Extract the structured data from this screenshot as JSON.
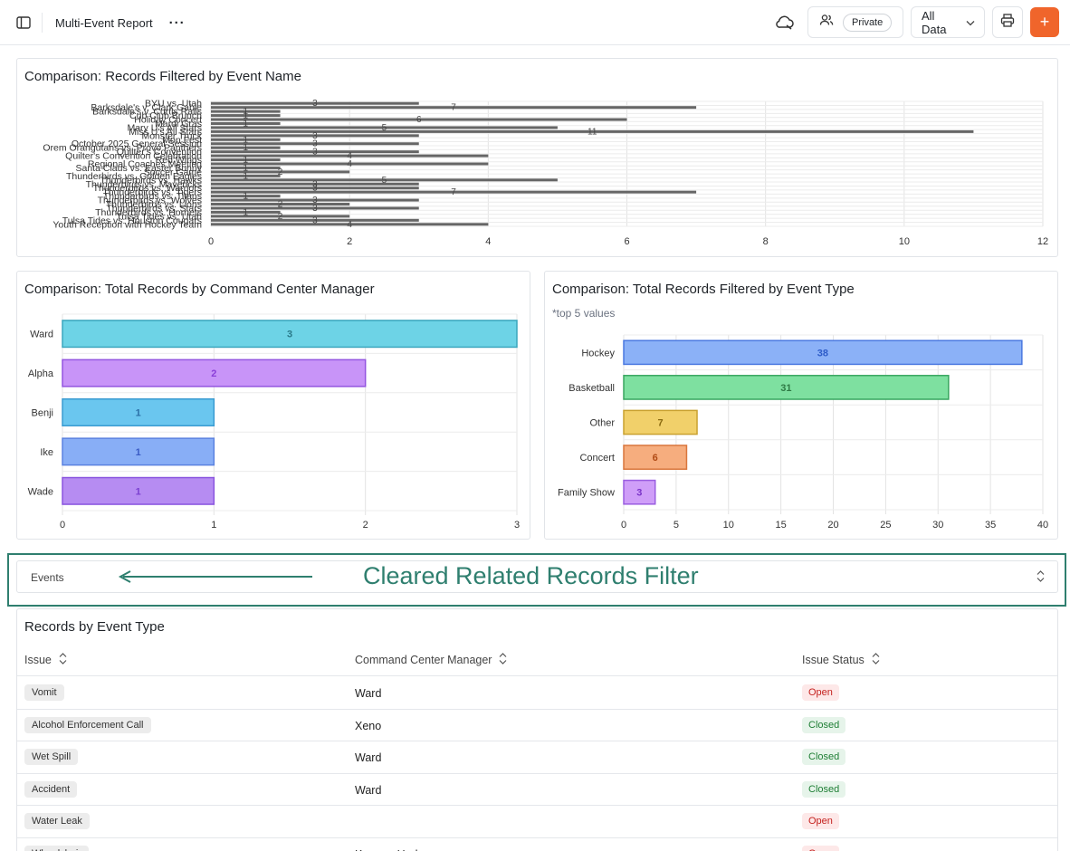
{
  "header": {
    "report_title": "Multi-Event Report",
    "more_label": "···",
    "visibility_label": "Private",
    "data_scope_label": "All Data",
    "add_label": "+"
  },
  "charts": {
    "event_name": {
      "title": "Comparison: Records Filtered by Event Name"
    },
    "manager": {
      "title": "Comparison: Total Records by Command Center Manager"
    },
    "event_type": {
      "title": "Comparison: Total Records Filtered by Event Type",
      "subtitle": "*top 5 values"
    }
  },
  "chart_data": [
    {
      "type": "bar",
      "orientation": "horizontal",
      "title": "Comparison: Records Filtered by Event Name",
      "categories": [
        "BYU vs. Utah",
        "Barksdale's v. Clark Gable",
        "Barksdale's v. Curtis Ralls",
        "Cub Club Brunch",
        "Holiday Concert",
        "Mardi Gras",
        "Mary U's All Stars",
        "Miss U's All Stars",
        "Monster Truck",
        "Mon Fest",
        "October 2025 General Session",
        "Orem Orangutans vs. Provo Panthers",
        "Quilter's Convention",
        "Quilter's Convention Celebration",
        "Red Wings",
        "Regional Coaches Meeting",
        "Santa Claus vs. Easter Bunny",
        "Soccer Game",
        "Thunderbirds vs. Golden Eagles",
        "Thunderbirds vs. Hawks",
        "Thunderbirds vs. Mavericks",
        "Thunderbirds vs. Warriors",
        "Thunderbirds vs. Tigers",
        "Thunderbirds vs. Titans",
        "Thunderbirds vs. Wolves",
        "Thunderbirds vs. Lions",
        "Thunderbirds vs. Stars",
        "Thunderbirds vs. Hornets",
        "Tulsa Tides vs. Utah",
        "Tulsa Tides vs. Houston Cougars",
        "Youth Reception with Hockey Team"
      ],
      "values": [
        3,
        7,
        1,
        1,
        6,
        1,
        5,
        11,
        3,
        1,
        3,
        1,
        3,
        4,
        1,
        4,
        1,
        2,
        1,
        5,
        3,
        3,
        7,
        1,
        3,
        2,
        3,
        1,
        2,
        3,
        4
      ],
      "xlim": [
        0,
        12
      ],
      "xticks": [
        "0",
        "2",
        "4",
        "6",
        "8",
        "10",
        "12"
      ],
      "grid": true,
      "color": "#666666"
    },
    {
      "type": "bar",
      "orientation": "horizontal",
      "title": "Comparison: Total Records by Command Center Manager",
      "categories": [
        "Ward",
        "Alpha",
        "Benji",
        "Ike",
        "Wade"
      ],
      "values": [
        3,
        2,
        1,
        1,
        1
      ],
      "colors": [
        "#6dd3e6",
        "#c894f8",
        "#6ac6ef",
        "#88aef6",
        "#b68cf2"
      ],
      "borders": [
        "#3aa6bd",
        "#9354e0",
        "#3a9bd1",
        "#5b82e0",
        "#8a55df"
      ],
      "label_colors": [
        "#2a7a8a",
        "#8a3ed8",
        "#2a6fa6",
        "#3a5bc4",
        "#7a3fd0"
      ],
      "xlim": [
        0,
        3
      ],
      "xticks": [
        "0",
        "1",
        "2",
        "3"
      ],
      "grid": true
    },
    {
      "type": "bar",
      "orientation": "horizontal",
      "title": "Comparison: Total Records Filtered by Event Type",
      "subtitle": "*top 5 values",
      "categories": [
        "Hockey",
        "Basketball",
        "Other",
        "Concert",
        "Family Show"
      ],
      "values": [
        38,
        31,
        7,
        6,
        3
      ],
      "colors": [
        "#8bb1f7",
        "#7ee0a0",
        "#f1d06a",
        "#f6ad7e",
        "#cf9ef8"
      ],
      "borders": [
        "#4a78e0",
        "#3aa660",
        "#c9a12f",
        "#d9763d",
        "#9a5ee0"
      ],
      "label_colors": [
        "#2e5cc8",
        "#2f7a45",
        "#8a6a10",
        "#b04a14",
        "#7a32c8"
      ],
      "xlim": [
        0,
        40
      ],
      "xticks": [
        "0",
        "5",
        "10",
        "15",
        "20",
        "25",
        "30",
        "35",
        "40"
      ],
      "grid": true
    }
  ],
  "events_filter": {
    "label": "Events",
    "annotation": "Cleared Related Records Filter"
  },
  "table": {
    "title": "Records by Event Type",
    "columns": [
      "Issue",
      "Command Center Manager",
      "Issue Status"
    ],
    "rows": [
      {
        "issue": "Vomit",
        "manager": "Ward",
        "status": "Open"
      },
      {
        "issue": "Alcohol Enforcement Call",
        "manager": "Xeno",
        "status": "Closed"
      },
      {
        "issue": "Wet Spill",
        "manager": "Ward",
        "status": "Closed"
      },
      {
        "issue": "Accident",
        "manager": "Ward",
        "status": "Closed"
      },
      {
        "issue": "Water Leak",
        "manager": "",
        "status": "Open"
      },
      {
        "issue": "Wheelchair",
        "manager": "Keenan Hodges",
        "status": "Open"
      }
    ]
  }
}
